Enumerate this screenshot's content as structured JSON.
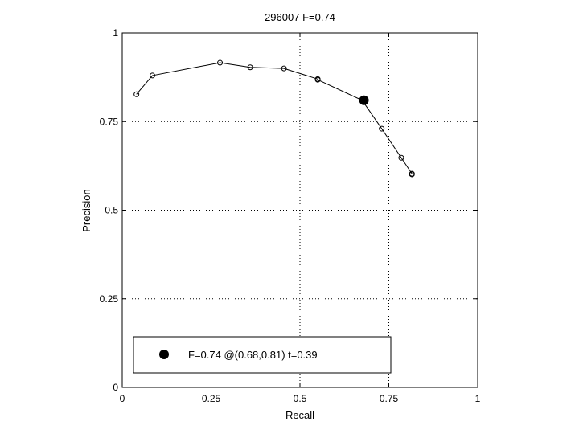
{
  "chart_data": {
    "type": "line",
    "title": "296007 F=0.74",
    "xlabel": "Recall",
    "ylabel": "Precision",
    "xlim": [
      0,
      1
    ],
    "ylim": [
      0,
      1
    ],
    "grid": true,
    "xticks": [
      0,
      0.25,
      0.5,
      0.75,
      1
    ],
    "yticks": [
      0,
      0.25,
      0.5,
      0.75,
      1
    ],
    "xtick_labels": [
      "0",
      "0.25",
      "0.5",
      "0.75",
      "1"
    ],
    "ytick_labels": [
      "0",
      "0.25",
      "0.5",
      "0.75",
      "1"
    ],
    "series": [
      {
        "x": [
          0.04,
          0.085,
          0.275,
          0.36,
          0.455,
          0.55,
          0.55,
          0.675,
          0.73,
          0.785,
          0.815,
          0.815
        ],
        "y": [
          0.827,
          0.88,
          0.916,
          0.903,
          0.9,
          0.87,
          0.868,
          0.81,
          0.73,
          0.648,
          0.603,
          0.601
        ]
      }
    ],
    "best_point": {
      "x": 0.68,
      "y": 0.81
    },
    "legend": {
      "placement": "bottom-left",
      "label": "F=0.74 @(0.68,0.81) t=0.39"
    }
  }
}
